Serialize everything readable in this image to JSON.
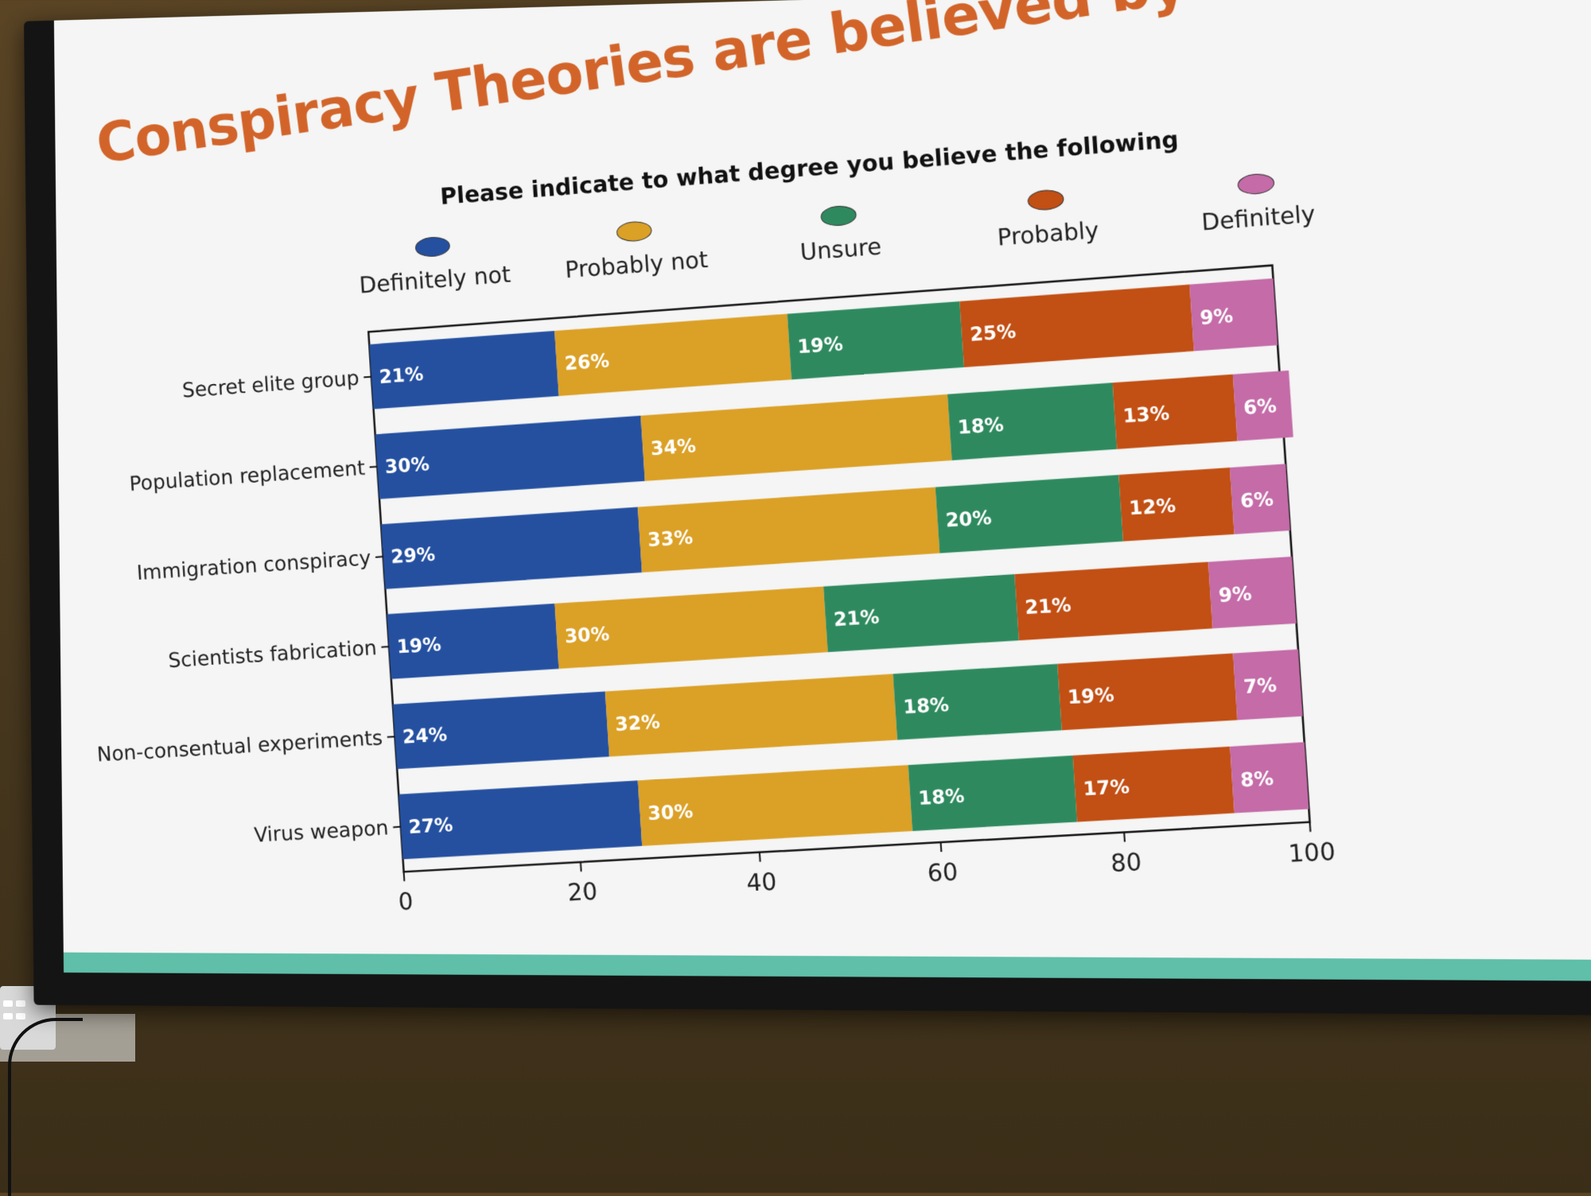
{
  "slide": {
    "title": "Conspiracy Theories are believed by many"
  },
  "chart_data": {
    "type": "bar",
    "orientation": "horizontal",
    "stacked": true,
    "title": "Please indicate to what degree you believe the following",
    "xlabel": "",
    "ylabel": "",
    "xlim": [
      0,
      100
    ],
    "x_ticks": [
      "0",
      "20",
      "40",
      "60",
      "80",
      "100"
    ],
    "legend_placement": "top",
    "grid": false,
    "categories": [
      "Secret elite group",
      "Population replacement",
      "Immigration conspiracy",
      "Scientists fabrication",
      "Non-consentual experiments",
      "Virus weapon"
    ],
    "series": [
      {
        "name": "Definitely not",
        "color": "#2550a0",
        "values": [
          21,
          30,
          29,
          19,
          24,
          27
        ]
      },
      {
        "name": "Probably not",
        "color": "#dba026",
        "values": [
          26,
          34,
          33,
          30,
          32,
          30
        ]
      },
      {
        "name": "Unsure",
        "color": "#2e8a5e",
        "values": [
          19,
          18,
          20,
          21,
          18,
          18
        ]
      },
      {
        "name": "Probably",
        "color": "#c24f14",
        "values": [
          25,
          13,
          12,
          21,
          19,
          17
        ]
      },
      {
        "name": "Definitely",
        "color": "#c46ba8",
        "values": [
          9,
          6,
          6,
          9,
          7,
          8
        ]
      }
    ],
    "value_suffix": "%"
  }
}
